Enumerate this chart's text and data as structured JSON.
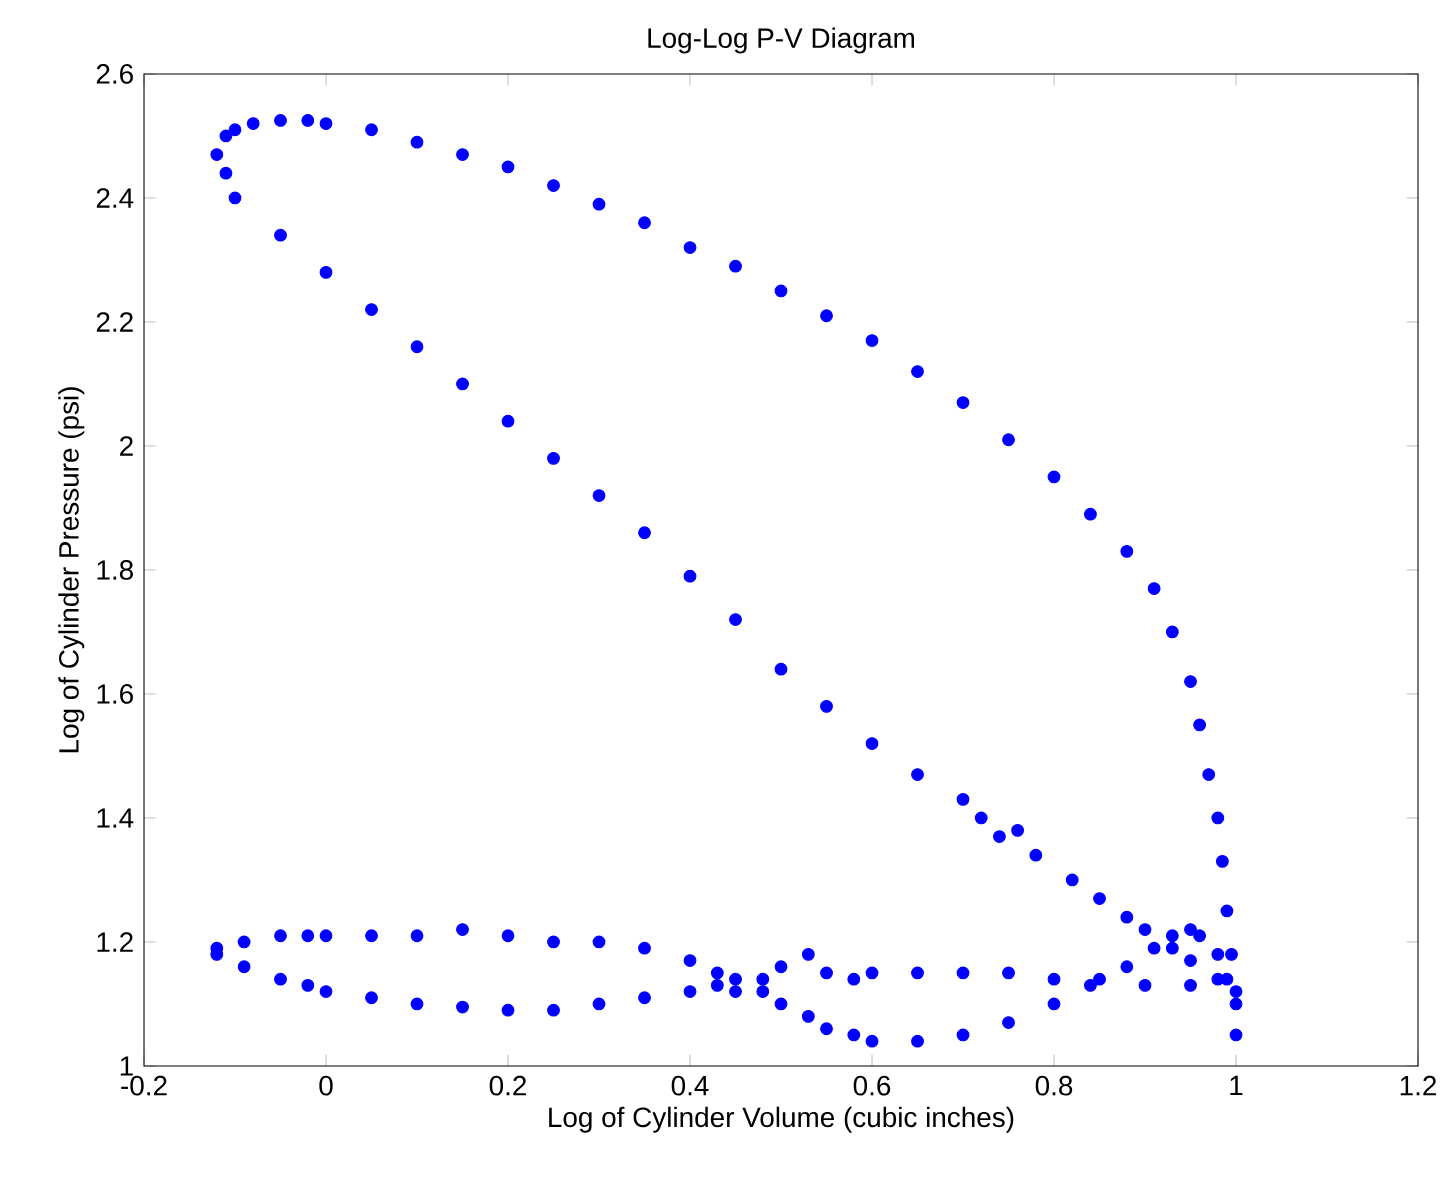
{
  "chart_data": {
    "type": "scatter",
    "title": "Log-Log P-V Diagram",
    "xlabel": "Log of Cylinder Volume (cubic inches)",
    "ylabel": "Log of Cylinder Pressure (psi)",
    "xlim": [
      -0.2,
      1.2
    ],
    "ylim": [
      1,
      2.6
    ],
    "xticks": [
      -0.2,
      0,
      0.2,
      0.4,
      0.6,
      0.8,
      1,
      1.2
    ],
    "yticks": [
      1,
      1.2,
      1.4,
      1.6,
      1.8,
      2,
      2.2,
      2.4,
      2.6
    ],
    "grid": false,
    "marker": "circle",
    "series": [
      {
        "color": "#0000ff",
        "x": [
          -0.12,
          -0.11,
          -0.1,
          -0.08,
          -0.05,
          -0.02,
          0,
          0.05,
          0.1,
          0.15,
          0.2,
          0.25,
          0.3,
          0.35,
          0.4,
          0.45,
          0.5,
          0.55,
          0.6,
          0.65,
          0.7,
          0.75,
          0.8,
          0.84,
          0.88,
          0.91,
          0.93,
          0.95,
          0.96,
          0.97,
          0.98,
          0.985,
          0.99,
          0.995,
          1.0,
          1.0
        ],
        "values": [
          2.47,
          2.5,
          2.51,
          2.52,
          2.525,
          2.525,
          2.52,
          2.51,
          2.49,
          2.47,
          2.45,
          2.42,
          2.39,
          2.36,
          2.32,
          2.29,
          2.25,
          2.21,
          2.17,
          2.12,
          2.07,
          2.01,
          1.95,
          1.89,
          1.83,
          1.77,
          1.7,
          1.62,
          1.55,
          1.47,
          1.4,
          1.33,
          1.25,
          1.18,
          1.12,
          1.05
        ]
      },
      {
        "color": "#0000ff",
        "x": [
          -0.11,
          -0.1,
          -0.05,
          0,
          0.05,
          0.1,
          0.15,
          0.2,
          0.25,
          0.3,
          0.35,
          0.4,
          0.45,
          0.5,
          0.55,
          0.6,
          0.65,
          0.7,
          0.72,
          0.74,
          0.76,
          0.78,
          0.82,
          0.85,
          0.88,
          0.9,
          0.93,
          0.95,
          0.98
        ],
        "values": [
          2.44,
          2.4,
          2.34,
          2.28,
          2.22,
          2.16,
          2.1,
          2.04,
          1.98,
          1.92,
          1.86,
          1.79,
          1.72,
          1.64,
          1.58,
          1.52,
          1.47,
          1.43,
          1.4,
          1.37,
          1.38,
          1.34,
          1.3,
          1.27,
          1.24,
          1.22,
          1.19,
          1.17,
          1.14
        ]
      },
      {
        "color": "#0000ff",
        "x": [
          -0.12,
          -0.09,
          -0.05,
          -0.02,
          0,
          0.05,
          0.1,
          0.15,
          0.2,
          0.25,
          0.3,
          0.35,
          0.4,
          0.43,
          0.45,
          0.48,
          0.5,
          0.53,
          0.55,
          0.58,
          0.6,
          0.65,
          0.7,
          0.75,
          0.8,
          0.84,
          0.88,
          0.91,
          0.93,
          0.95,
          0.96,
          0.98,
          0.99,
          1.0
        ],
        "values": [
          1.19,
          1.2,
          1.21,
          1.21,
          1.21,
          1.21,
          1.21,
          1.22,
          1.21,
          1.2,
          1.2,
          1.19,
          1.17,
          1.15,
          1.14,
          1.12,
          1.1,
          1.08,
          1.06,
          1.05,
          1.04,
          1.04,
          1.05,
          1.07,
          1.1,
          1.13,
          1.16,
          1.19,
          1.21,
          1.22,
          1.21,
          1.18,
          1.14,
          1.1
        ]
      },
      {
        "color": "#0000ff",
        "x": [
          -0.12,
          -0.09,
          -0.05,
          -0.02,
          0,
          0.05,
          0.1,
          0.15,
          0.2,
          0.25,
          0.3,
          0.35,
          0.4,
          0.43,
          0.45,
          0.48,
          0.5,
          0.53,
          0.55,
          0.58,
          0.6,
          0.65,
          0.7,
          0.75,
          0.8,
          0.85,
          0.9,
          0.95
        ],
        "values": [
          1.18,
          1.16,
          1.14,
          1.13,
          1.12,
          1.11,
          1.1,
          1.095,
          1.09,
          1.09,
          1.1,
          1.11,
          1.12,
          1.13,
          1.12,
          1.14,
          1.16,
          1.18,
          1.15,
          1.14,
          1.15,
          1.15,
          1.15,
          1.15,
          1.14,
          1.14,
          1.13,
          1.13
        ]
      }
    ]
  }
}
